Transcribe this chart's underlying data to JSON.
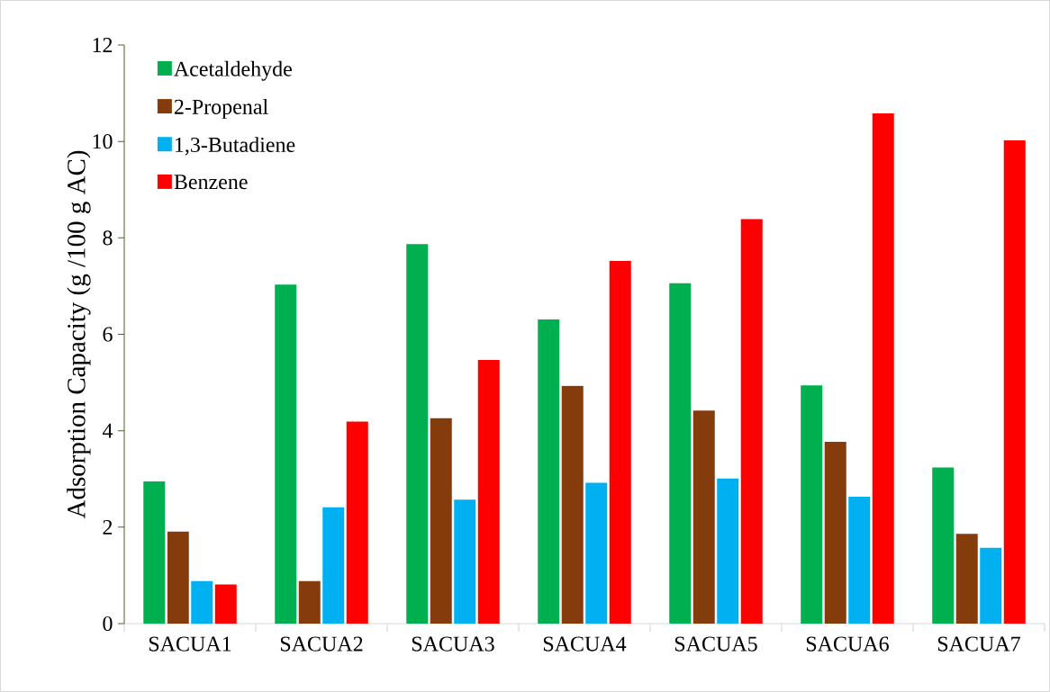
{
  "chart_data": {
    "type": "bar",
    "ylabel": "Adsorption Capacity (g /100 g AC)",
    "categories": [
      "SACUA1",
      "SACUA2",
      "SACUA3",
      "SACUA4",
      "SACUA5",
      "SACUA6",
      "SACUA7"
    ],
    "series": [
      {
        "name": "Acetaldehyde",
        "color": "#00b050",
        "values": [
          2.95,
          7.03,
          7.87,
          6.31,
          7.06,
          4.94,
          3.24
        ]
      },
      {
        "name": "2-Propenal",
        "color": "#843c0c",
        "values": [
          1.91,
          0.88,
          4.26,
          4.93,
          4.42,
          3.77,
          1.86
        ]
      },
      {
        "name": "1,3-Butadiene",
        "color": "#00b0f0",
        "values": [
          0.88,
          2.41,
          2.57,
          2.92,
          3.01,
          2.63,
          1.57
        ]
      },
      {
        "name": "Benzene",
        "color": "#ff0000",
        "values": [
          0.81,
          4.19,
          5.47,
          7.52,
          8.39,
          10.58,
          10.02
        ]
      }
    ],
    "ylim": [
      0,
      12
    ],
    "yticks": [
      0,
      2,
      4,
      6,
      8,
      10,
      12
    ],
    "legend": "top left",
    "grid": false
  }
}
